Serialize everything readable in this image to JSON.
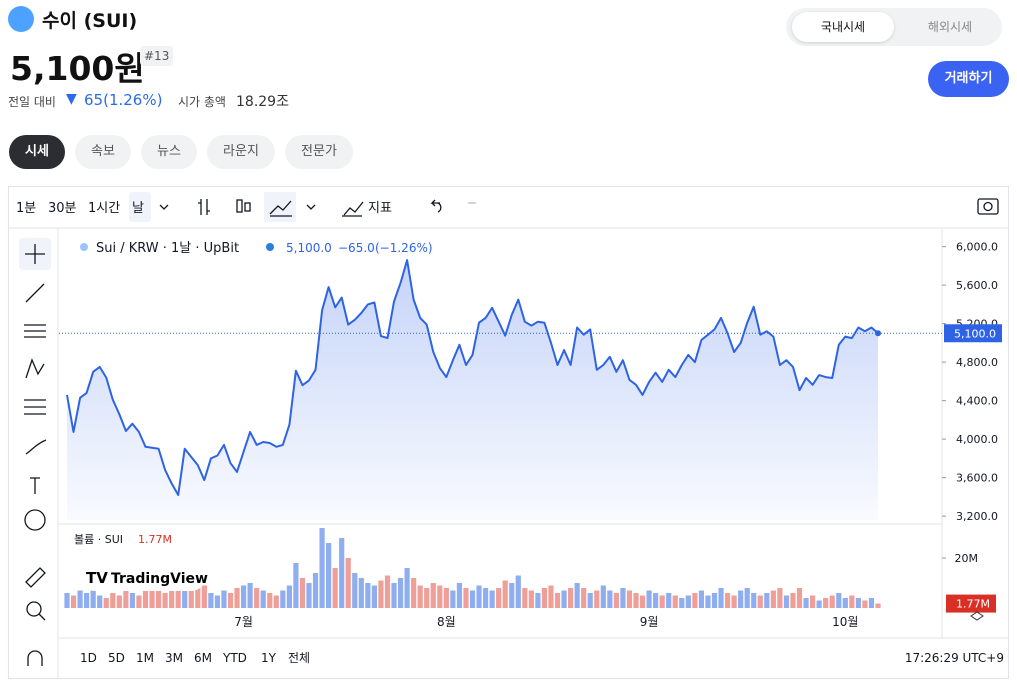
{
  "header": {
    "coin_name": "수이 (SUI)",
    "price": "5,100원",
    "rank": "#13",
    "change_label": "전일 대비",
    "change": "65(1.26%)",
    "market_cap_label": "시가 총액",
    "market_cap": "18.29조",
    "toggle": [
      "국내시세",
      "해외시세"
    ],
    "trade_button": "거래하기",
    "tabs": [
      "시세",
      "속보",
      "뉴스",
      "라운지",
      "전문가"
    ]
  },
  "toolbar": {
    "intervals": [
      "1분",
      "30분",
      "1시간",
      "날"
    ],
    "indicators": "지표",
    "ranges": [
      "1D",
      "5D",
      "1M",
      "3M",
      "6M",
      "YTD",
      "1Y",
      "전체"
    ],
    "time": "17:26:29 UTC+9",
    "brand": "TradingView"
  },
  "chart_data": [
    {
      "type": "area",
      "legend": {
        "symbol": "Sui / KRW · 1날 · UpBit",
        "close": "5,100.0",
        "change": "−65.0",
        "change_pct": "(−1.26%)"
      },
      "categories": [
        null,
        null,
        null,
        null,
        null,
        null,
        null,
        null,
        null,
        null,
        null,
        null,
        null,
        null,
        null,
        null,
        null,
        null,
        null,
        null,
        null,
        null,
        null,
        null,
        null,
        null,
        null,
        "7월",
        null,
        null,
        null,
        null,
        null,
        null,
        null,
        null,
        null,
        null,
        null,
        null,
        null,
        null,
        null,
        null,
        null,
        null,
        null,
        null,
        null,
        null,
        null,
        null,
        null,
        null,
        null,
        null,
        null,
        null,
        "8월",
        null,
        null,
        null,
        null,
        null,
        null,
        null,
        null,
        null,
        null,
        null,
        null,
        null,
        null,
        null,
        null,
        null,
        null,
        null,
        null,
        null,
        null,
        null,
        null,
        null,
        null,
        null,
        null,
        null,
        null,
        "9월",
        null,
        null,
        null,
        null,
        null,
        null,
        null,
        null,
        null,
        null,
        null,
        null,
        null,
        null,
        null,
        null,
        null,
        null,
        null,
        null,
        null,
        null,
        null,
        null,
        null,
        null,
        null,
        null,
        null,
        "10월",
        null,
        null,
        null,
        null,
        null
      ],
      "series": [
        {
          "name": "Sui",
          "color": "#2e63e6",
          "values": [
            4460,
            4075,
            4430,
            4480,
            4700,
            4750,
            4640,
            4410,
            4260,
            4085,
            4160,
            4075,
            3920,
            3910,
            3900,
            3680,
            3540,
            3420,
            3900,
            3815,
            3730,
            3575,
            3800,
            3830,
            3940,
            3750,
            3660,
            3870,
            4075,
            3940,
            3970,
            3960,
            3920,
            3940,
            4150,
            4710,
            4560,
            4610,
            4720,
            5340,
            5580,
            5370,
            5470,
            5190,
            5240,
            5310,
            5400,
            5420,
            5070,
            5050,
            5430,
            5625,
            5860,
            5450,
            5260,
            5190,
            4905,
            4740,
            4645,
            4820,
            4980,
            4770,
            4875,
            5210,
            5260,
            5365,
            5220,
            5075,
            5290,
            5450,
            5220,
            5180,
            5220,
            5210,
            5000,
            4770,
            4925,
            4770,
            5160,
            5085,
            5140,
            4720,
            4770,
            4855,
            4700,
            4820,
            4615,
            4565,
            4460,
            4595,
            4690,
            4595,
            4720,
            4645,
            4770,
            4875,
            4800,
            5030,
            5085,
            5140,
            5260,
            5100,
            4905,
            5000,
            5210,
            5375,
            5085,
            5120,
            5065,
            4770,
            4820,
            4750,
            4510,
            4635,
            4565,
            4665,
            4645,
            4635,
            4980,
            5065,
            5050,
            5160,
            5120,
            5160,
            5100
          ],
          "value_labels": [
            null,
            null,
            null,
            null,
            null,
            null,
            null,
            null,
            null,
            null,
            null,
            null,
            null,
            null,
            null,
            null,
            null,
            null,
            null,
            null,
            null,
            null,
            null,
            null,
            null,
            null,
            null,
            null,
            null,
            null,
            null,
            null,
            null,
            null,
            null,
            null,
            null,
            null,
            null,
            null,
            null,
            null,
            null,
            null,
            null,
            null,
            null,
            null,
            null,
            null,
            null,
            null,
            null,
            null,
            null,
            null,
            null,
            null,
            null,
            null,
            null,
            null,
            null,
            null,
            null,
            null,
            null,
            null,
            null,
            null,
            null,
            null,
            null,
            null,
            null,
            null,
            null,
            null,
            null,
            null,
            null,
            null,
            null,
            null,
            null,
            null,
            null,
            null,
            null,
            null,
            null,
            null,
            null,
            null,
            null,
            null,
            null,
            null,
            null,
            null,
            null,
            null,
            null,
            null,
            null,
            null,
            null,
            null,
            null,
            null,
            null,
            null,
            null,
            null,
            null,
            null,
            null,
            null,
            null,
            null,
            null,
            null,
            null,
            null,
            "5,100.0"
          ]
        }
      ],
      "ylim": [
        3160,
        6100
      ],
      "yticks": [
        {
          "value": 3200,
          "label": "3,200.0"
        },
        {
          "value": 3600,
          "label": "3,600.0"
        },
        {
          "value": 4000,
          "label": "4,000.0"
        },
        {
          "value": 4400,
          "label": "4,400.0"
        },
        {
          "value": 4800,
          "label": "4,800.0"
        },
        {
          "value": 5200,
          "label": "5,200.0"
        },
        {
          "value": 5600,
          "label": "5,600.0"
        },
        {
          "value": 6000,
          "label": "6,000.0"
        }
      ]
    },
    {
      "type": "bar",
      "title": "볼륨 · SUI",
      "up_color": "#8eaef0",
      "down_color": "#ef9f98",
      "series": [
        {
          "name": "볼륨",
          "values": [
            6,
            5,
            7,
            6,
            8,
            5,
            4,
            6,
            5,
            7,
            6,
            5,
            8,
            9,
            7,
            6,
            10,
            9,
            8,
            7,
            8,
            9,
            6,
            5,
            7,
            6,
            8,
            9,
            10,
            8,
            7,
            6,
            5,
            7,
            9,
            18,
            12,
            10,
            14,
            32,
            26,
            16,
            28,
            20,
            14,
            12,
            10,
            9,
            11,
            13,
            10,
            12,
            16,
            12,
            9,
            8,
            10,
            9,
            8,
            7,
            10,
            8,
            7,
            9,
            8,
            7,
            8,
            11,
            10,
            13,
            8,
            7,
            6,
            8,
            9,
            6,
            7,
            8,
            10,
            8,
            6,
            7,
            9,
            7,
            6,
            8,
            7,
            6,
            5,
            7,
            6,
            5,
            6,
            5,
            4,
            5,
            6,
            7,
            5,
            6,
            8,
            6,
            5,
            7,
            8,
            6,
            5,
            6,
            7,
            8,
            5,
            6,
            8,
            4,
            5,
            3,
            4,
            5,
            6,
            4,
            5,
            4,
            3,
            4,
            1.77
          ],
          "value_labels": [
            null,
            null,
            null,
            null,
            null,
            null,
            null,
            null,
            null,
            null,
            null,
            null,
            null,
            null,
            null,
            null,
            null,
            null,
            null,
            null,
            null,
            null,
            null,
            null,
            null,
            null,
            null,
            null,
            null,
            null,
            null,
            null,
            null,
            null,
            null,
            null,
            null,
            null,
            null,
            null,
            null,
            null,
            null,
            null,
            null,
            null,
            null,
            null,
            null,
            null,
            null,
            null,
            null,
            null,
            null,
            null,
            null,
            null,
            null,
            null,
            null,
            null,
            null,
            null,
            null,
            null,
            null,
            null,
            null,
            null,
            null,
            null,
            null,
            null,
            null,
            null,
            null,
            null,
            null,
            null,
            null,
            null,
            null,
            null,
            null,
            null,
            null,
            null,
            null,
            null,
            null,
            null,
            null,
            null,
            null,
            null,
            null,
            null,
            null,
            null,
            null,
            null,
            null,
            null,
            null,
            null,
            null,
            null,
            null,
            null,
            null,
            null,
            null,
            null,
            null,
            null,
            null,
            null,
            null,
            null,
            null,
            null,
            null,
            null,
            "1.77M"
          ]
        }
      ],
      "ylim": [
        0,
        32
      ],
      "yticks": [
        {
          "value": 20,
          "label": "20M"
        }
      ]
    }
  ]
}
